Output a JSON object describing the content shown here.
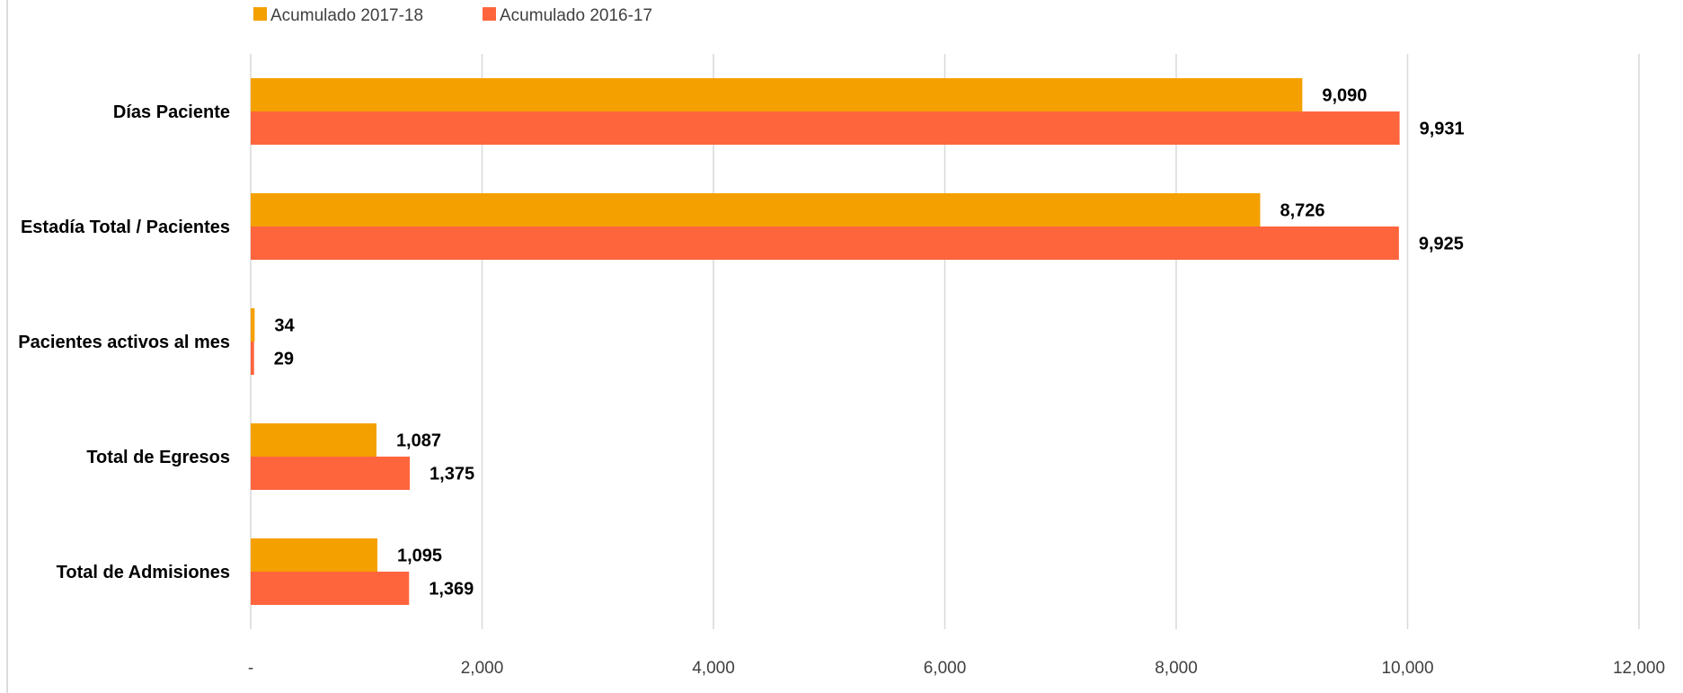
{
  "chart_data": {
    "type": "bar",
    "orientation": "horizontal",
    "title": "",
    "xlabel": "",
    "ylabel": "",
    "categories": [
      "Días Paciente",
      "Estadía Total / Pacientes",
      "Pacientes activos al mes",
      "Total de Egresos",
      "Total de Admisiones"
    ],
    "series": [
      {
        "name": "Acumulado 2017-18",
        "color": "#F4A000",
        "values": [
          9090,
          8726,
          34,
          1087,
          1095
        ],
        "labels": [
          "9,090",
          "8,726",
          "34",
          "1,087",
          "1,095"
        ]
      },
      {
        "name": "Acumulado 2016-17",
        "color": "#FF653D",
        "values": [
          9931,
          9925,
          29,
          1375,
          1369
        ],
        "labels": [
          "9,931",
          "9,925",
          "29",
          "1,375",
          "1,369"
        ]
      }
    ],
    "xlim": [
      0,
      12000
    ],
    "xticks": [
      0,
      2000,
      4000,
      6000,
      8000,
      10000,
      12000
    ],
    "xtick_labels": [
      "-",
      "2,000",
      "4,000",
      "6,000",
      "8,000",
      "10,000",
      "12,000"
    ],
    "grid": "vertical",
    "legend": "top-left"
  }
}
